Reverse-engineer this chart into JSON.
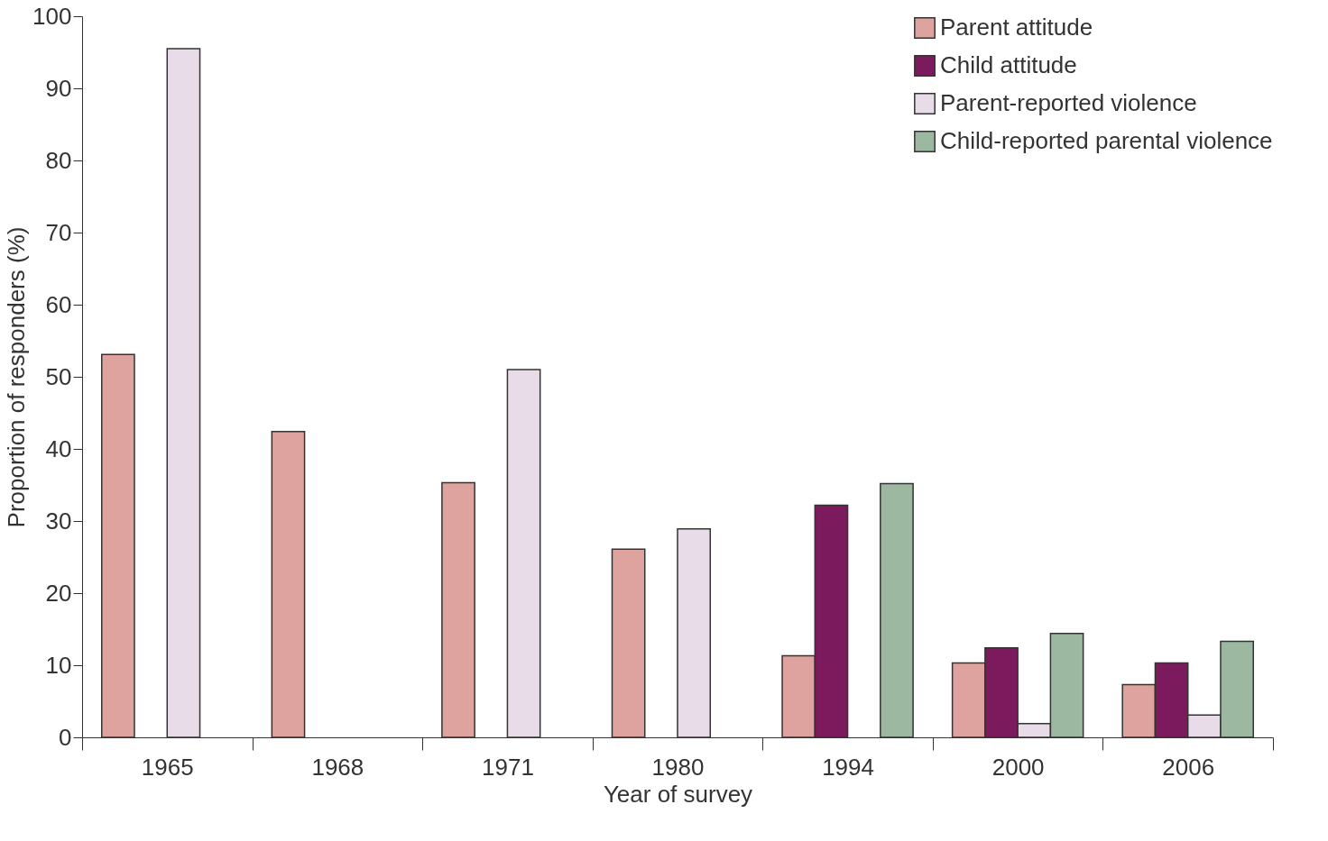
{
  "chart_data": {
    "type": "bar",
    "xlabel": "Year of survey",
    "ylabel": "Proportion of responders (%)",
    "categories": [
      "1965",
      "1968",
      "1971",
      "1980",
      "1994",
      "2000",
      "2006"
    ],
    "series": [
      {
        "name": "Parent attitude",
        "color": "#dea39f",
        "values": [
          53.1,
          42.4,
          35.3,
          26.1,
          11.3,
          10.3,
          7.3
        ]
      },
      {
        "name": "Child attitude",
        "color": "#7b1a5c",
        "values": [
          null,
          null,
          null,
          null,
          32.2,
          12.4,
          10.3
        ]
      },
      {
        "name": "Parent-reported violence",
        "color": "#e8dce8",
        "values": [
          95.5,
          null,
          51.0,
          28.9,
          null,
          1.9,
          3.1
        ]
      },
      {
        "name": "Child-reported parental violence",
        "color": "#9db8a0",
        "values": [
          null,
          null,
          null,
          null,
          35.2,
          14.4,
          13.3
        ]
      }
    ],
    "ylim": [
      0,
      100
    ],
    "yticks": [
      0,
      10,
      20,
      30,
      40,
      50,
      60,
      70,
      80,
      90,
      100
    ],
    "grid": false,
    "legend": "top right"
  }
}
